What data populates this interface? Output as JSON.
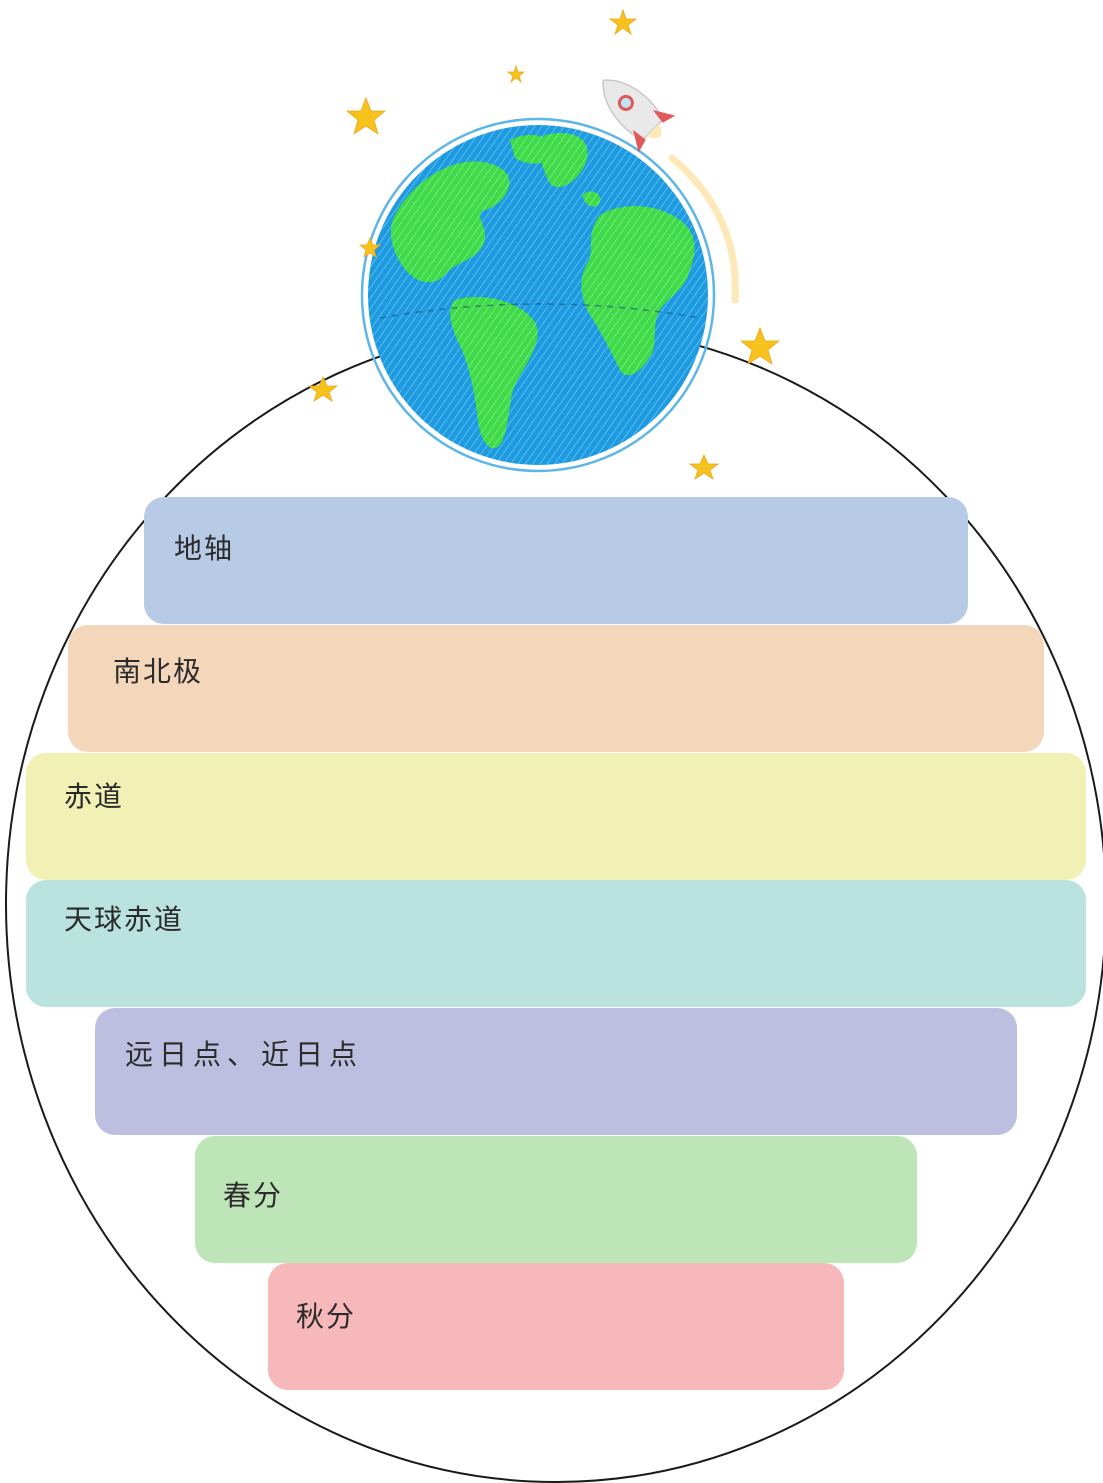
{
  "bands": [
    {
      "label": "地轴",
      "color": "#b8cbe6"
    },
    {
      "label": "南北极",
      "color": "#f4d6bb"
    },
    {
      "label": "赤道",
      "color": "#f1f1b6"
    },
    {
      "label": "天球赤道",
      "color": "#bae2df"
    },
    {
      "label": "远日点、近日点",
      "color": "#bebee0"
    },
    {
      "label": "春分",
      "color": "#bde5b8"
    },
    {
      "label": "秋分",
      "color": "#f6b8b8"
    }
  ],
  "decorations": {
    "globe_icon": "earth-globe-icon",
    "rocket_icon": "rocket-icon",
    "star_icon": "star-icon",
    "ocean_color": "#1e9be0",
    "land_color": "#3fd94a",
    "star_color": "#f7c21c",
    "rocket_body_color": "#e9e9e9",
    "rocket_accent_color": "#e05a5a"
  }
}
